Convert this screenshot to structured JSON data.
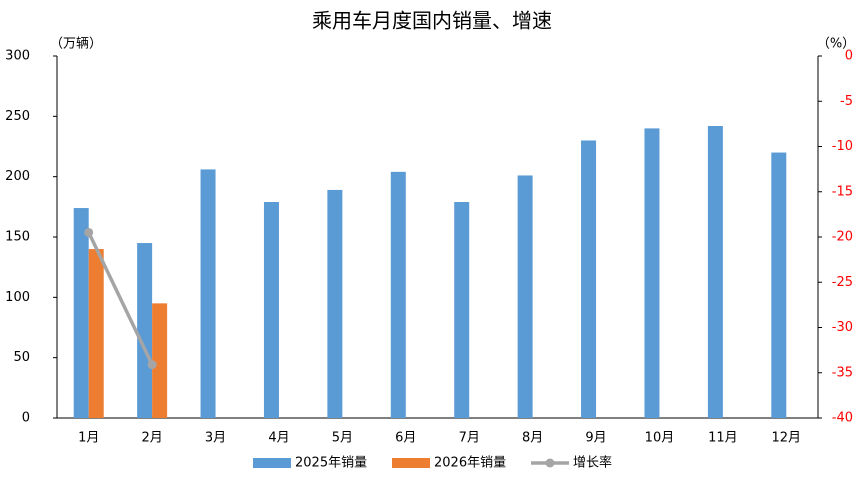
{
  "chart_data": {
    "type": "bar-line",
    "title": "乘用车月度国内销量、增速",
    "y_label": "（万辆）",
    "y2_label": "（%）",
    "categories": [
      "1月",
      "2月",
      "3月",
      "4月",
      "5月",
      "6月",
      "7月",
      "8月",
      "9月",
      "10月",
      "11月",
      "12月"
    ],
    "series": [
      {
        "name": "2025年销量",
        "type": "bar",
        "color": "#5b9bd5",
        "values": [
          174,
          145,
          206,
          179,
          189,
          204,
          179,
          201,
          230,
          240,
          242,
          220
        ]
      },
      {
        "name": "2026年销量",
        "type": "bar",
        "color": "#ed7d31",
        "values": [
          140,
          95,
          null,
          null,
          null,
          null,
          null,
          null,
          null,
          null,
          null,
          null
        ]
      },
      {
        "name": "增长率",
        "type": "line",
        "axis": "y2",
        "color": "#a5a5a5",
        "values": [
          -19.5,
          -34.1,
          null,
          null,
          null,
          null,
          null,
          null,
          null,
          null,
          null,
          null
        ]
      }
    ],
    "ylim": [
      0,
      300
    ],
    "yticks": [
      0,
      50,
      100,
      150,
      200,
      250,
      300
    ],
    "y2lim": [
      -40,
      0
    ],
    "y2ticks": [
      0,
      -5,
      -10,
      -15,
      -20,
      -25,
      -30,
      -35,
      -40
    ],
    "y2_tick_color": "#ff0000",
    "legend": "bottom"
  }
}
